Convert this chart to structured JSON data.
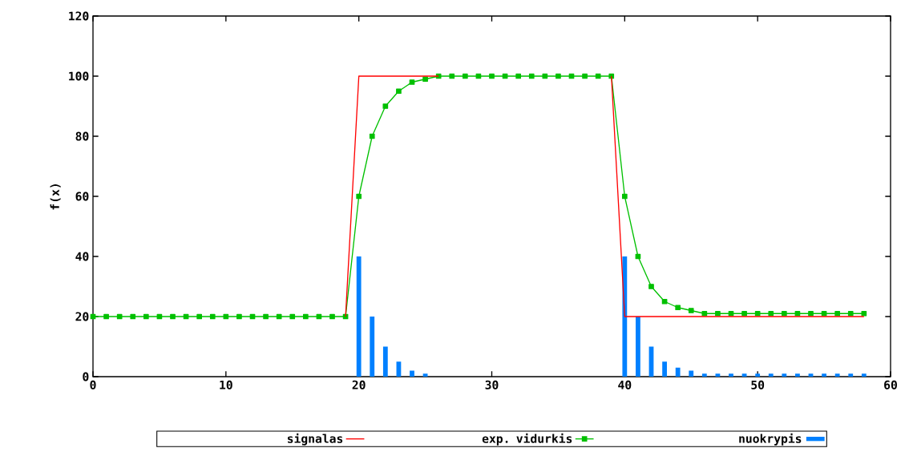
{
  "chart_data": {
    "type": "line",
    "ylabel": "f(x)",
    "x": [
      0,
      1,
      2,
      3,
      4,
      5,
      6,
      7,
      8,
      9,
      10,
      11,
      12,
      13,
      14,
      15,
      16,
      17,
      18,
      19,
      20,
      21,
      22,
      23,
      24,
      25,
      26,
      27,
      28,
      29,
      30,
      31,
      32,
      33,
      34,
      35,
      36,
      37,
      38,
      39,
      40,
      41,
      42,
      43,
      44,
      45,
      46,
      47,
      48,
      49,
      50,
      51,
      52,
      53,
      54,
      55,
      56,
      57,
      58
    ],
    "series": [
      {
        "name": "signalas",
        "color": "#ff0000",
        "marker": "none",
        "values": [
          null,
          null,
          null,
          null,
          null,
          null,
          null,
          null,
          null,
          null,
          null,
          null,
          null,
          null,
          null,
          null,
          null,
          null,
          null,
          20,
          100,
          100,
          100,
          100,
          100,
          100,
          100,
          null,
          null,
          null,
          null,
          null,
          null,
          null,
          null,
          null,
          null,
          null,
          null,
          100,
          20,
          20,
          20,
          20,
          20,
          20,
          20,
          20,
          20,
          20,
          20,
          20,
          20,
          20,
          20,
          20,
          20,
          20,
          20
        ]
      },
      {
        "name": "exp. vidurkis",
        "color": "#00c000",
        "marker": "square",
        "values": [
          20,
          20,
          20,
          20,
          20,
          20,
          20,
          20,
          20,
          20,
          20,
          20,
          20,
          20,
          20,
          20,
          20,
          20,
          20,
          20,
          60,
          80,
          90,
          95,
          98,
          99,
          100,
          100,
          100,
          100,
          100,
          100,
          100,
          100,
          100,
          100,
          100,
          100,
          100,
          100,
          60,
          40,
          30,
          25,
          23,
          22,
          21,
          21,
          21,
          21,
          21,
          21,
          21,
          21,
          21,
          21,
          21,
          21,
          21
        ]
      },
      {
        "name": "nuokrypis",
        "type": "bar",
        "color": "#0080ff",
        "values": [
          0,
          0,
          0,
          0,
          0,
          0,
          0,
          0,
          0,
          0,
          0,
          0,
          0,
          0,
          0,
          0,
          0,
          0,
          0,
          0,
          40,
          20,
          10,
          5,
          2,
          1,
          0,
          0,
          0,
          0,
          0,
          0,
          0,
          0,
          0,
          0,
          0,
          0,
          0,
          0,
          40,
          20,
          10,
          5,
          3,
          2,
          1,
          1,
          1,
          1,
          1,
          1,
          1,
          1,
          1,
          1,
          1,
          1,
          1
        ]
      }
    ],
    "xlim": [
      0,
      60
    ],
    "xticks": [
      0,
      10,
      20,
      30,
      40,
      50,
      60
    ],
    "ylim": [
      0,
      120
    ],
    "yticks": [
      0,
      20,
      40,
      60,
      80,
      100,
      120
    ],
    "grid": false,
    "legend": "bottom"
  }
}
